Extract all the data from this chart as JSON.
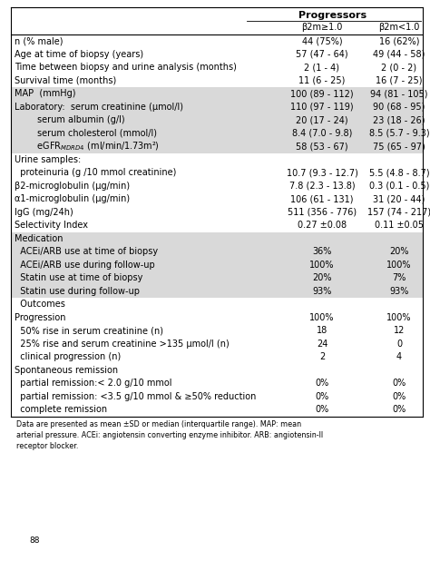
{
  "title": "Progressors",
  "col1_header": "β2m≥1.0",
  "col2_header": "β2m<1.0",
  "rows": [
    {
      "label": "n (% male)",
      "col1": "44 (75%)",
      "col2": "16 (62%)",
      "bold": false,
      "shaded": false,
      "section": false,
      "indent": 0
    },
    {
      "label": "Age at time of biopsy (years)",
      "col1": "57 (47 - 64)",
      "col2": "49 (44 - 58)",
      "bold": false,
      "shaded": false,
      "section": false,
      "indent": 0
    },
    {
      "label": "Time between biopsy and urine analysis (months)",
      "col1": "2 (1 - 4)",
      "col2": "2 (0 - 2)",
      "bold": false,
      "shaded": false,
      "section": false,
      "indent": 0
    },
    {
      "label": "Survival time (months)",
      "col1": "11 (6 - 25)",
      "col2": "16 (7 - 25)",
      "bold": false,
      "shaded": false,
      "section": false,
      "indent": 0
    },
    {
      "label": "MAP  (mmHg)",
      "col1": "100 (89 - 112)",
      "col2": "94 (81 - 105)",
      "bold": false,
      "shaded": true,
      "section": false,
      "indent": 0
    },
    {
      "label": "Laboratory:  serum creatinine (µmol/l)",
      "col1": "110 (97 - 119)",
      "col2": "90 (68 - 95)",
      "bold": false,
      "shaded": true,
      "section": false,
      "indent": 0
    },
    {
      "label": "        serum albumin (g/l)",
      "col1": "20 (17 - 24)",
      "col2": "23 (18 - 26)",
      "bold": false,
      "shaded": true,
      "section": false,
      "indent": 0
    },
    {
      "label": "        serum cholesterol (mmol/l)",
      "col1": "8.4 (7.0 - 9.8)",
      "col2": "8.5 (5.7 - 9.3)",
      "bold": false,
      "shaded": true,
      "section": false,
      "indent": 0
    },
    {
      "label": "        eGFR$_{MDRD4}$ (ml/min/1.73m²)",
      "col1": "58 (53 - 67)",
      "col2": "75 (65 - 97)",
      "bold": false,
      "shaded": true,
      "section": false,
      "indent": 0
    },
    {
      "label": "Urine samples:",
      "col1": "",
      "col2": "",
      "bold": false,
      "shaded": false,
      "section": true,
      "indent": 0
    },
    {
      "label": "  proteinuria (g /10 mmol creatinine)",
      "col1": "10.7 (9.3 - 12.7)",
      "col2": "5.5 (4.8 - 8.7)",
      "bold": false,
      "shaded": false,
      "section": false,
      "indent": 0
    },
    {
      "label": "β2-microglobulin (µg/min)",
      "col1": "7.8 (2.3 - 13.8)",
      "col2": "0.3 (0.1 - 0.5)",
      "bold": false,
      "shaded": false,
      "section": false,
      "indent": 0
    },
    {
      "α1-microglobulin (µg/min)": "α1-microglobulin (µg/min)",
      "label": "α1-microglobulin (µg/min)",
      "col1": "106 (61 - 131)",
      "col2": "31 (20 - 44)",
      "bold": false,
      "shaded": false,
      "section": false,
      "indent": 0
    },
    {
      "label": "IgG (mg/24h)",
      "col1": "511 (356 - 776)",
      "col2": "157 (74 - 217)",
      "bold": false,
      "shaded": false,
      "section": false,
      "indent": 0
    },
    {
      "label": "Selectivity Index",
      "col1": "0.27 ±0.08",
      "col2": "0.11 ±0.05",
      "bold": false,
      "shaded": false,
      "section": false,
      "indent": 0
    },
    {
      "label": "Medication",
      "col1": "",
      "col2": "",
      "bold": false,
      "shaded": true,
      "section": true,
      "indent": 0
    },
    {
      "label": "  ACEi/ARB use at time of biopsy",
      "col1": "36%",
      "col2": "20%",
      "bold": false,
      "shaded": true,
      "section": false,
      "indent": 0
    },
    {
      "label": "  ACEi/ARB use during follow-up",
      "col1": "100%",
      "col2": "100%",
      "bold": false,
      "shaded": true,
      "section": false,
      "indent": 0
    },
    {
      "label": "  Statin use at time of biopsy",
      "col1": "20%",
      "col2": "7%",
      "bold": false,
      "shaded": true,
      "section": false,
      "indent": 0
    },
    {
      "label": "  Statin use during follow-up",
      "col1": "93%",
      "col2": "93%",
      "bold": false,
      "shaded": true,
      "section": false,
      "indent": 0
    },
    {
      "label": "  Outcomes",
      "col1": "",
      "col2": "",
      "bold": false,
      "shaded": false,
      "section": true,
      "indent": 0
    },
    {
      "label": "Progression",
      "col1": "100%",
      "col2": "100%",
      "bold": false,
      "shaded": false,
      "section": false,
      "indent": 0
    },
    {
      "label": "  50% rise in serum creatinine (n)",
      "col1": "18",
      "col2": "12",
      "bold": false,
      "shaded": false,
      "section": false,
      "indent": 0
    },
    {
      "label": "  25% rise and serum creatinine >135 µmol/l (n)",
      "col1": "24",
      "col2": "0",
      "bold": false,
      "shaded": false,
      "section": false,
      "indent": 0
    },
    {
      "label": "  clinical progression (n)",
      "col1": "2",
      "col2": "4",
      "bold": false,
      "shaded": false,
      "section": false,
      "indent": 0
    },
    {
      "label": "Spontaneous remission",
      "col1": "",
      "col2": "",
      "bold": false,
      "shaded": false,
      "section": true,
      "indent": 0
    },
    {
      "label": "  partial remission:< 2.0 g/10 mmol",
      "col1": "0%",
      "col2": "0%",
      "bold": false,
      "shaded": false,
      "section": false,
      "indent": 0
    },
    {
      "label": "  partial remission: <3.5 g/10 mmol & ≥50% reduction",
      "col1": "0%",
      "col2": "0%",
      "bold": false,
      "shaded": false,
      "section": false,
      "indent": 0
    },
    {
      "label": "  complete remission",
      "col1": "0%",
      "col2": "0%",
      "bold": false,
      "shaded": false,
      "section": false,
      "indent": 0
    }
  ],
  "footnote": "Data are presented as mean ±SD or median (interquartile range). MAP: mean\narterial pressure. ACEi: angiotensin converting enzyme inhibitor. ARB: angiotensin-II\nreceptor blocker.",
  "shaded_color": "#d9d9d9",
  "white_color": "#ffffff",
  "font_size": 7.0,
  "header_font_size": 8.0,
  "page_number": "88",
  "fig_width": 4.74,
  "fig_height": 6.18,
  "dpi": 100
}
